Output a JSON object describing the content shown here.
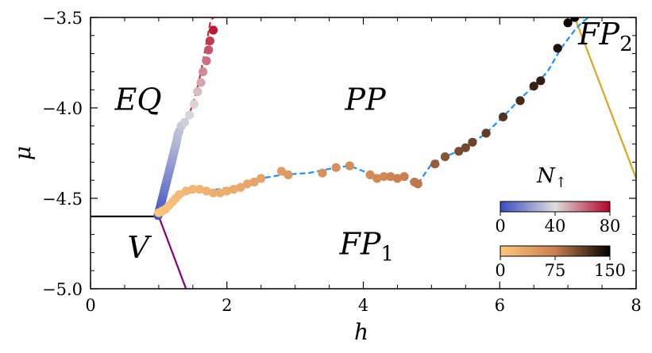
{
  "chart_data": {
    "type": "scatter",
    "xlabel": "h",
    "ylabel": "μ",
    "xlim": [
      0,
      8
    ],
    "ylim": [
      -5.0,
      -3.5
    ],
    "xticks": [
      "0",
      "2",
      "4",
      "6",
      "8"
    ],
    "yticks": [
      "−3.5",
      "−4.0",
      "−4.5",
      "−5.0"
    ],
    "region_labels": [
      {
        "name": "EQ",
        "text": "EQ",
        "sub": "",
        "x": 0.7,
        "y": -4.01
      },
      {
        "name": "PP",
        "text": "PP",
        "sub": "",
        "x": 4.03,
        "y": -4.01
      },
      {
        "name": "V",
        "text": "V",
        "sub": "",
        "x": 0.7,
        "y": -4.83
      },
      {
        "name": "FP1",
        "text": "FP",
        "sub": "1",
        "x": 4.05,
        "y": -4.81
      },
      {
        "name": "FP2",
        "text": "FP",
        "sub": "2",
        "x": 7.55,
        "y": -3.65
      }
    ],
    "lines": [
      {
        "name": "V-EQ boundary",
        "color": "#000000",
        "style": "solid",
        "points": [
          [
            0,
            -4.6
          ],
          [
            1.0,
            -4.6
          ]
        ]
      },
      {
        "name": "V-FP1 boundary",
        "color": "#800080",
        "style": "solid",
        "points": [
          [
            1.0,
            -4.6
          ],
          [
            1.4,
            -5.0
          ]
        ]
      },
      {
        "name": "FP2 boundary",
        "color": "#DAA520",
        "style": "solid",
        "points": [
          [
            7.1,
            -3.5
          ],
          [
            8.0,
            -4.39
          ]
        ]
      },
      {
        "name": "EQ-PP boundary",
        "color": "#D62728",
        "style": "dashed",
        "points": [
          [
            1.02,
            -4.58
          ],
          [
            1.05,
            -4.53
          ],
          [
            1.1,
            -4.46
          ],
          [
            1.13,
            -4.4
          ],
          [
            1.17,
            -4.34
          ],
          [
            1.21,
            -4.28
          ],
          [
            1.26,
            -4.22
          ],
          [
            1.32,
            -4.16
          ],
          [
            1.38,
            -4.1
          ],
          [
            1.44,
            -4.04
          ],
          [
            1.5,
            -3.98
          ],
          [
            1.56,
            -3.9
          ],
          [
            1.62,
            -3.8
          ],
          [
            1.67,
            -3.7
          ],
          [
            1.72,
            -3.6
          ],
          [
            1.76,
            -3.52
          ],
          [
            1.8,
            -3.5
          ]
        ]
      },
      {
        "name": "PP-FP1 boundary",
        "color": "#1E90FF",
        "style": "dashed",
        "points": [
          [
            1.02,
            -4.58
          ],
          [
            1.4,
            -4.47
          ],
          [
            1.7,
            -4.46
          ],
          [
            2.2,
            -4.43
          ],
          [
            2.5,
            -4.39
          ],
          [
            2.8,
            -4.37
          ],
          [
            3.2,
            -4.36
          ],
          [
            3.6,
            -4.33
          ],
          [
            3.8,
            -4.32
          ],
          [
            4.2,
            -4.38
          ],
          [
            4.5,
            -4.38
          ],
          [
            4.8,
            -4.42
          ],
          [
            5.0,
            -4.31
          ],
          [
            5.2,
            -4.27
          ],
          [
            5.5,
            -4.22
          ],
          [
            5.8,
            -4.14
          ],
          [
            6.1,
            -4.03
          ],
          [
            6.3,
            -3.95
          ],
          [
            6.5,
            -3.88
          ],
          [
            6.7,
            -3.8
          ],
          [
            6.9,
            -3.67
          ],
          [
            7.1,
            -3.57
          ],
          [
            7.2,
            -3.53
          ],
          [
            7.3,
            -3.5
          ]
        ]
      }
    ],
    "series": [
      {
        "name": "EQ-PP boundary points",
        "colormap": "coolwarm",
        "points": [
          {
            "x": 0.99,
            "y": -4.595,
            "n": 2
          },
          {
            "x": 1.0,
            "y": -4.58,
            "n": 3
          },
          {
            "x": 1.01,
            "y": -4.565,
            "n": 4
          },
          {
            "x": 1.02,
            "y": -4.55,
            "n": 5
          },
          {
            "x": 1.03,
            "y": -4.535,
            "n": 6
          },
          {
            "x": 1.04,
            "y": -4.52,
            "n": 7
          },
          {
            "x": 1.05,
            "y": -4.505,
            "n": 8
          },
          {
            "x": 1.06,
            "y": -4.49,
            "n": 9
          },
          {
            "x": 1.07,
            "y": -4.475,
            "n": 10
          },
          {
            "x": 1.08,
            "y": -4.46,
            "n": 11
          },
          {
            "x": 1.09,
            "y": -4.445,
            "n": 12
          },
          {
            "x": 1.1,
            "y": -4.43,
            "n": 13
          },
          {
            "x": 1.11,
            "y": -4.415,
            "n": 14
          },
          {
            "x": 1.12,
            "y": -4.4,
            "n": 15
          },
          {
            "x": 1.13,
            "y": -4.385,
            "n": 16
          },
          {
            "x": 1.14,
            "y": -4.37,
            "n": 17
          },
          {
            "x": 1.15,
            "y": -4.355,
            "n": 18
          },
          {
            "x": 1.16,
            "y": -4.34,
            "n": 19
          },
          {
            "x": 1.17,
            "y": -4.325,
            "n": 20
          },
          {
            "x": 1.18,
            "y": -4.31,
            "n": 21
          },
          {
            "x": 1.19,
            "y": -4.295,
            "n": 22
          },
          {
            "x": 1.2,
            "y": -4.28,
            "n": 23
          },
          {
            "x": 1.21,
            "y": -4.265,
            "n": 24
          },
          {
            "x": 1.22,
            "y": -4.25,
            "n": 25
          },
          {
            "x": 1.23,
            "y": -4.235,
            "n": 26
          },
          {
            "x": 1.24,
            "y": -4.22,
            "n": 27
          },
          {
            "x": 1.25,
            "y": -4.205,
            "n": 28
          },
          {
            "x": 1.26,
            "y": -4.19,
            "n": 29
          },
          {
            "x": 1.27,
            "y": -4.17,
            "n": 30
          },
          {
            "x": 1.28,
            "y": -4.15,
            "n": 31
          },
          {
            "x": 1.3,
            "y": -4.13,
            "n": 32
          },
          {
            "x": 1.33,
            "y": -4.1,
            "n": 34
          },
          {
            "x": 1.38,
            "y": -4.08,
            "n": 36
          },
          {
            "x": 1.45,
            "y": -4.04,
            "n": 38
          },
          {
            "x": 1.52,
            "y": -3.98,
            "n": 42
          },
          {
            "x": 1.57,
            "y": -3.91,
            "n": 46
          },
          {
            "x": 1.62,
            "y": -3.86,
            "n": 50
          },
          {
            "x": 1.65,
            "y": -3.8,
            "n": 55
          },
          {
            "x": 1.7,
            "y": -3.74,
            "n": 60
          },
          {
            "x": 1.73,
            "y": -3.68,
            "n": 65
          },
          {
            "x": 1.75,
            "y": -3.63,
            "n": 70
          },
          {
            "x": 1.8,
            "y": -3.57,
            "n": 76
          }
        ]
      },
      {
        "name": "PP-FP1 boundary points",
        "colormap": "copper_r",
        "points": [
          {
            "x": 1.0,
            "y": -4.58,
            "n": 2
          },
          {
            "x": 1.05,
            "y": -4.57,
            "n": 4
          },
          {
            "x": 1.1,
            "y": -4.56,
            "n": 5
          },
          {
            "x": 1.15,
            "y": -4.54,
            "n": 7
          },
          {
            "x": 1.2,
            "y": -4.52,
            "n": 9
          },
          {
            "x": 1.25,
            "y": -4.5,
            "n": 11
          },
          {
            "x": 1.3,
            "y": -4.48,
            "n": 13
          },
          {
            "x": 1.4,
            "y": -4.46,
            "n": 16
          },
          {
            "x": 1.5,
            "y": -4.45,
            "n": 18
          },
          {
            "x": 1.6,
            "y": -4.45,
            "n": 20
          },
          {
            "x": 1.7,
            "y": -4.46,
            "n": 22
          },
          {
            "x": 1.8,
            "y": -4.47,
            "n": 24
          },
          {
            "x": 1.9,
            "y": -4.47,
            "n": 26
          },
          {
            "x": 2.0,
            "y": -4.46,
            "n": 28
          },
          {
            "x": 2.1,
            "y": -4.45,
            "n": 30
          },
          {
            "x": 2.2,
            "y": -4.44,
            "n": 32
          },
          {
            "x": 2.3,
            "y": -4.42,
            "n": 34
          },
          {
            "x": 2.4,
            "y": -4.41,
            "n": 36
          },
          {
            "x": 2.5,
            "y": -4.39,
            "n": 38
          },
          {
            "x": 2.8,
            "y": -4.35,
            "n": 45
          },
          {
            "x": 2.9,
            "y": -4.37,
            "n": 48
          },
          {
            "x": 3.4,
            "y": -4.36,
            "n": 55
          },
          {
            "x": 3.6,
            "y": -4.33,
            "n": 58
          },
          {
            "x": 3.8,
            "y": -4.32,
            "n": 60
          },
          {
            "x": 4.1,
            "y": -4.37,
            "n": 62
          },
          {
            "x": 4.2,
            "y": -4.39,
            "n": 64
          },
          {
            "x": 4.3,
            "y": -4.38,
            "n": 66
          },
          {
            "x": 4.4,
            "y": -4.38,
            "n": 70
          },
          {
            "x": 4.5,
            "y": -4.39,
            "n": 72
          },
          {
            "x": 4.6,
            "y": -4.38,
            "n": 74
          },
          {
            "x": 4.75,
            "y": -4.41,
            "n": 78
          },
          {
            "x": 4.8,
            "y": -4.42,
            "n": 80
          },
          {
            "x": 5.05,
            "y": -4.31,
            "n": 95
          },
          {
            "x": 5.2,
            "y": -4.27,
            "n": 100
          },
          {
            "x": 5.4,
            "y": -4.24,
            "n": 105
          },
          {
            "x": 5.5,
            "y": -4.22,
            "n": 108
          },
          {
            "x": 5.6,
            "y": -4.19,
            "n": 110
          },
          {
            "x": 5.8,
            "y": -4.14,
            "n": 114
          },
          {
            "x": 6.05,
            "y": -4.05,
            "n": 120
          },
          {
            "x": 6.3,
            "y": -3.96,
            "n": 125
          },
          {
            "x": 6.5,
            "y": -3.88,
            "n": 130
          },
          {
            "x": 6.6,
            "y": -3.85,
            "n": 132
          },
          {
            "x": 6.85,
            "y": -3.67,
            "n": 138
          },
          {
            "x": 7.0,
            "y": -3.53,
            "n": 145
          },
          {
            "x": 7.1,
            "y": -3.5,
            "n": 150
          }
        ]
      }
    ],
    "colorbars": [
      {
        "name": "coolwarm",
        "title": "N",
        "title_sub": "↑",
        "range": [
          0,
          80
        ],
        "ticks": [
          "0",
          "40",
          "80"
        ],
        "stops": [
          "#3B4CC0",
          "#DDDDDD",
          "#B40426"
        ]
      },
      {
        "name": "copper_r",
        "title": "",
        "title_sub": "",
        "range": [
          0,
          150
        ],
        "ticks": [
          "0",
          "75",
          "150"
        ],
        "stops": [
          "#FFC77F",
          "#C97F50",
          "#000000"
        ]
      }
    ]
  }
}
